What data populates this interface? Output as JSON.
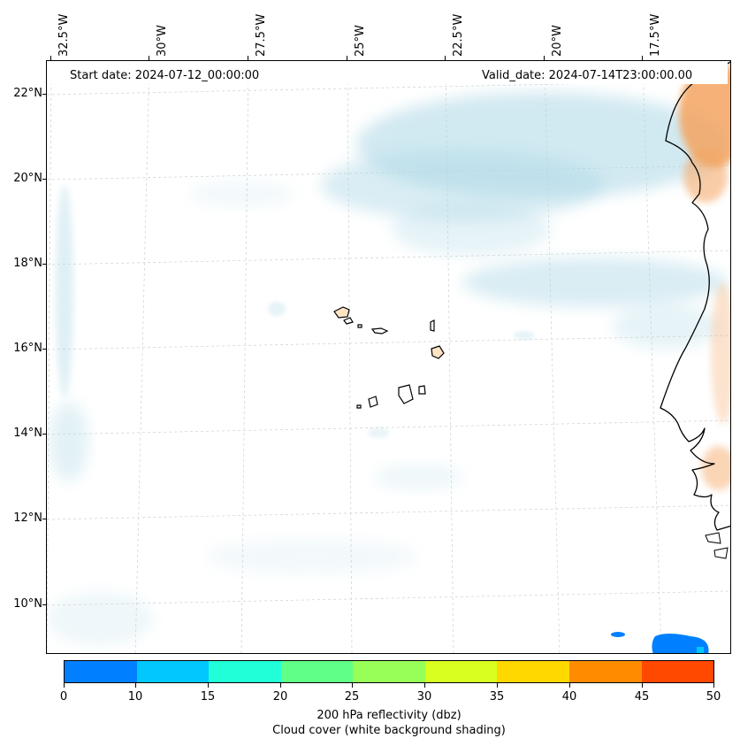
{
  "map": {
    "start_date": "Start date: 2024-07-12_00:00:00",
    "valid_date": "Valid_date: 2024-07-14T23:00:00.00",
    "lon_labels": [
      "32.5°W",
      "30°W",
      "27.5°W",
      "25°W",
      "22.5°W",
      "20°W",
      "17.5°W"
    ],
    "lat_labels": [
      "22°N",
      "20°N",
      "18°N",
      "16°N",
      "14°N",
      "12°N",
      "10°N"
    ],
    "region": "Cape Verde / West Africa coast",
    "land_color": "#ffe4c4",
    "cloud_color": "#add8e6",
    "dust_color": "#f4a460"
  },
  "colorbar": {
    "tick_labels": [
      "0",
      "10",
      "15",
      "20",
      "25",
      "30",
      "35",
      "40",
      "45",
      "50"
    ],
    "colors": [
      "#0080ff",
      "#00c8ff",
      "#20ffd8",
      "#60ff88",
      "#98ff58",
      "#d8ff20",
      "#ffd800",
      "#ff8c00",
      "#ff4800"
    ],
    "label_line1": "200 hPa reflectivity (dbz)",
    "label_line2": "Cloud cover (white background shading)"
  }
}
